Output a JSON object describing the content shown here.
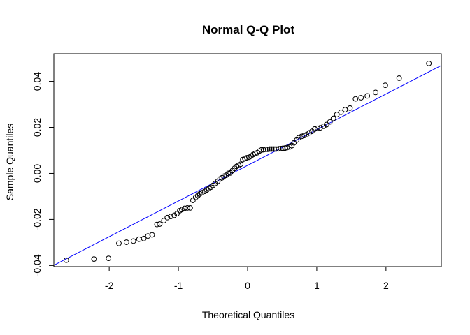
{
  "chart_data": {
    "type": "scatter",
    "title": "Normal Q-Q Plot",
    "xlabel": "Theoretical Quantiles",
    "ylabel": "Sample Quantiles",
    "xlim": [
      -2.8,
      2.8
    ],
    "ylim": [
      -0.0405,
      0.052
    ],
    "x_ticks": [
      -2,
      -1,
      0,
      1,
      2
    ],
    "x_tick_labels": [
      "-2",
      "-1",
      "0",
      "1",
      "2"
    ],
    "y_ticks": [
      -0.04,
      -0.02,
      0.0,
      0.02,
      0.04
    ],
    "y_tick_labels": [
      "-0.04",
      "-0.02",
      "0.00",
      "0.02",
      "0.04"
    ],
    "grid": false,
    "reference_line": {
      "intercept": 0.0035,
      "slope": 0.0155,
      "color": "#0000ff"
    },
    "point_color": "#000000",
    "points": [
      [
        -2.62,
        -0.0377
      ],
      [
        -2.22,
        -0.0372
      ],
      [
        -2.01,
        -0.0369
      ],
      [
        -1.86,
        -0.0304
      ],
      [
        -1.75,
        -0.0299
      ],
      [
        -1.65,
        -0.0294
      ],
      [
        -1.57,
        -0.0286
      ],
      [
        -1.5,
        -0.0283
      ],
      [
        -1.44,
        -0.0272
      ],
      [
        -1.38,
        -0.0267
      ],
      [
        -1.31,
        -0.0222
      ],
      [
        -1.27,
        -0.022
      ],
      [
        -1.21,
        -0.0205
      ],
      [
        -1.16,
        -0.0192
      ],
      [
        -1.11,
        -0.0187
      ],
      [
        -1.06,
        -0.0182
      ],
      [
        -1.02,
        -0.0175
      ],
      [
        -0.98,
        -0.0162
      ],
      [
        -0.95,
        -0.0157
      ],
      [
        -0.91,
        -0.0152
      ],
      [
        -0.87,
        -0.015
      ],
      [
        -0.83,
        -0.015
      ],
      [
        -0.79,
        -0.0117
      ],
      [
        -0.75,
        -0.0104
      ],
      [
        -0.72,
        -0.0097
      ],
      [
        -0.69,
        -0.0089
      ],
      [
        -0.66,
        -0.0084
      ],
      [
        -0.62,
        -0.0078
      ],
      [
        -0.59,
        -0.0072
      ],
      [
        -0.56,
        -0.0066
      ],
      [
        -0.53,
        -0.006
      ],
      [
        -0.5,
        -0.0052
      ],
      [
        -0.47,
        -0.0044
      ],
      [
        -0.43,
        -0.0034
      ],
      [
        -0.4,
        -0.0024
      ],
      [
        -0.37,
        -0.0019
      ],
      [
        -0.34,
        -0.0012
      ],
      [
        -0.31,
        -0.0008
      ],
      [
        -0.28,
        0.0
      ],
      [
        -0.25,
        0.0002
      ],
      [
        -0.22,
        0.0012
      ],
      [
        -0.19,
        0.0022
      ],
      [
        -0.16,
        0.003
      ],
      [
        -0.13,
        0.0035
      ],
      [
        -0.1,
        0.004
      ],
      [
        -0.07,
        0.006
      ],
      [
        -0.04,
        0.0065
      ],
      [
        -0.01,
        0.0068
      ],
      [
        0.02,
        0.007
      ],
      [
        0.05,
        0.0075
      ],
      [
        0.08,
        0.0082
      ],
      [
        0.11,
        0.0087
      ],
      [
        0.14,
        0.009
      ],
      [
        0.17,
        0.0097
      ],
      [
        0.2,
        0.0102
      ],
      [
        0.23,
        0.0103
      ],
      [
        0.26,
        0.0105
      ],
      [
        0.29,
        0.0105
      ],
      [
        0.32,
        0.0106
      ],
      [
        0.35,
        0.0106
      ],
      [
        0.38,
        0.0106
      ],
      [
        0.41,
        0.0106
      ],
      [
        0.45,
        0.0107
      ],
      [
        0.48,
        0.0108
      ],
      [
        0.51,
        0.0109
      ],
      [
        0.54,
        0.011
      ],
      [
        0.57,
        0.0112
      ],
      [
        0.61,
        0.0115
      ],
      [
        0.64,
        0.0121
      ],
      [
        0.67,
        0.0133
      ],
      [
        0.71,
        0.0145
      ],
      [
        0.74,
        0.0155
      ],
      [
        0.78,
        0.0161
      ],
      [
        0.82,
        0.0165
      ],
      [
        0.85,
        0.0168
      ],
      [
        0.89,
        0.0176
      ],
      [
        0.93,
        0.0183
      ],
      [
        0.97,
        0.0193
      ],
      [
        1.01,
        0.0196
      ],
      [
        1.05,
        0.0198
      ],
      [
        1.1,
        0.0205
      ],
      [
        1.14,
        0.0212
      ],
      [
        1.19,
        0.0224
      ],
      [
        1.24,
        0.0239
      ],
      [
        1.29,
        0.0256
      ],
      [
        1.35,
        0.0266
      ],
      [
        1.41,
        0.0277
      ],
      [
        1.48,
        0.0284
      ],
      [
        1.56,
        0.0324
      ],
      [
        1.64,
        0.0329
      ],
      [
        1.73,
        0.0337
      ],
      [
        1.85,
        0.0352
      ],
      [
        1.99,
        0.0383
      ],
      [
        2.19,
        0.0414
      ],
      [
        2.62,
        0.0478
      ]
    ]
  }
}
